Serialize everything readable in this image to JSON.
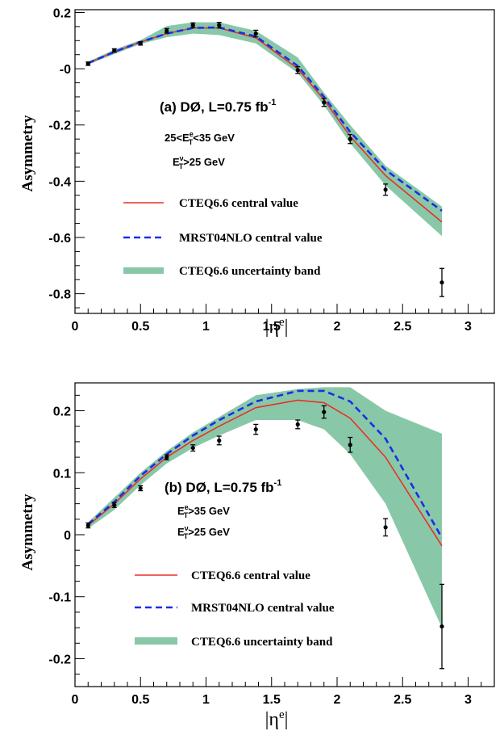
{
  "colors": {
    "cteq_line": "#e8302a",
    "mrst_line": "#1a2fe6",
    "band": "#88c8a8",
    "data_points": "#000000"
  },
  "chart_data": [
    {
      "type": "line",
      "panel": "a",
      "xlabel": "|η^e|",
      "ylabel": "Asymmetry",
      "xlim": [
        0,
        3.2
      ],
      "ylim": [
        -0.87,
        0.21
      ],
      "x_ticks": [
        "0",
        "0.5",
        "1",
        "1.5",
        "2",
        "2.5",
        "3"
      ],
      "x_tick_values": [
        0,
        0.5,
        1,
        1.5,
        2,
        2.5,
        3
      ],
      "y_ticks": [
        "0.2",
        "-0",
        "-0.2",
        "-0.4",
        "-0.6",
        "-0.8"
      ],
      "y_tick_values": [
        0.2,
        0,
        -0.2,
        -0.4,
        -0.6,
        -0.8
      ],
      "annotations": {
        "title_main": "(a) DØ, L=0.75 fb",
        "title_sup": "-1",
        "cut1_pre": "25<E",
        "cut1_sup": "e",
        "cut1_sub": "T",
        "cut1_post": "<35 GeV",
        "cut2_pre": "E",
        "cut2_sup": "ν",
        "cut2_sub": "T",
        "cut2_post": ">25 GeV"
      },
      "legend": [
        {
          "label": "CTEQ6.6 central value",
          "style": "solid"
        },
        {
          "label": "MRST04NLO central value",
          "style": "dashed"
        },
        {
          "label": "CTEQ6.6 uncertainty band",
          "style": "band"
        }
      ],
      "x": [
        0.1,
        0.3,
        0.5,
        0.7,
        0.9,
        1.1,
        1.38,
        1.7,
        1.9,
        2.1,
        2.37,
        2.8
      ],
      "series": [
        {
          "name": "CTEQ6.6 central value",
          "values": [
            0.02,
            0.06,
            0.095,
            0.125,
            0.145,
            0.145,
            0.11,
            0.0,
            -0.11,
            -0.24,
            -0.38,
            -0.545
          ]
        },
        {
          "name": "MRST04NLO central value",
          "values": [
            0.02,
            0.06,
            0.095,
            0.125,
            0.145,
            0.147,
            0.115,
            0.01,
            -0.1,
            -0.225,
            -0.36,
            -0.505
          ]
        }
      ],
      "band": {
        "name": "CTEQ6.6 uncertainty band",
        "upper": [
          0.025,
          0.068,
          0.102,
          0.152,
          0.165,
          0.165,
          0.135,
          0.04,
          -0.085,
          -0.2,
          -0.345,
          -0.49
        ],
        "lower": [
          0.015,
          0.052,
          0.088,
          0.112,
          0.125,
          0.12,
          0.09,
          -0.015,
          -0.13,
          -0.265,
          -0.415,
          -0.595
        ]
      },
      "data": {
        "x": [
          0.1,
          0.3,
          0.5,
          0.7,
          0.9,
          1.1,
          1.38,
          1.7,
          1.9,
          2.1,
          2.37,
          2.8
        ],
        "y": [
          0.018,
          0.065,
          0.09,
          0.135,
          0.155,
          0.155,
          0.125,
          -0.005,
          -0.12,
          -0.25,
          -0.43,
          -0.76
        ],
        "err": [
          0.006,
          0.006,
          0.006,
          0.008,
          0.008,
          0.01,
          0.012,
          0.012,
          0.014,
          0.016,
          0.02,
          0.05
        ]
      }
    },
    {
      "type": "line",
      "panel": "b",
      "xlabel": "|η^e|",
      "ylabel": "Asymmetry",
      "xlim": [
        0,
        3.2
      ],
      "ylim": [
        -0.245,
        0.245
      ],
      "x_ticks": [
        "0",
        "0.5",
        "1",
        "1.5",
        "2",
        "2.5",
        "3"
      ],
      "x_tick_values": [
        0,
        0.5,
        1,
        1.5,
        2,
        2.5,
        3
      ],
      "y_ticks": [
        "0.2",
        "0.1",
        "0",
        "-0.1",
        "-0.2"
      ],
      "y_tick_values": [
        0.2,
        0.1,
        0,
        -0.1,
        -0.2
      ],
      "annotations": {
        "title_main": "(b) DØ, L=0.75 fb",
        "title_sup": "-1",
        "cut1_pre": "E",
        "cut1_sup": "e",
        "cut1_sub": "T",
        "cut1_post": ">35 GeV",
        "cut2_pre": "E",
        "cut2_sup": "ν",
        "cut2_sub": "T",
        "cut2_post": ">25 GeV"
      },
      "legend": [
        {
          "label": "CTEQ6.6 central value",
          "style": "solid"
        },
        {
          "label": "MRST04NLO central value",
          "style": "dashed"
        },
        {
          "label": "CTEQ6.6 uncertainty band",
          "style": "band"
        }
      ],
      "x": [
        0.1,
        0.3,
        0.5,
        0.7,
        0.9,
        1.1,
        1.38,
        1.7,
        1.9,
        2.1,
        2.37,
        2.8
      ],
      "series": [
        {
          "name": "CTEQ6.6 central value",
          "values": [
            0.015,
            0.05,
            0.09,
            0.125,
            0.152,
            0.175,
            0.205,
            0.217,
            0.213,
            0.188,
            0.125,
            -0.018
          ]
        },
        {
          "name": "MRST04NLO central value",
          "values": [
            0.017,
            0.053,
            0.095,
            0.13,
            0.16,
            0.185,
            0.215,
            0.232,
            0.232,
            0.215,
            0.155,
            -0.005
          ]
        }
      ],
      "band": {
        "name": "CTEQ6.6 uncertainty band",
        "upper": [
          0.02,
          0.06,
          0.1,
          0.135,
          0.165,
          0.19,
          0.225,
          0.235,
          0.238,
          0.238,
          0.2,
          0.163
        ],
        "lower": [
          0.01,
          0.04,
          0.08,
          0.115,
          0.14,
          0.16,
          0.185,
          0.185,
          0.17,
          0.13,
          0.05,
          -0.15
        ]
      },
      "data": {
        "x": [
          0.1,
          0.3,
          0.5,
          0.7,
          0.9,
          1.1,
          1.38,
          1.7,
          1.9,
          2.1,
          2.37,
          2.8
        ],
        "y": [
          0.015,
          0.048,
          0.075,
          0.125,
          0.14,
          0.152,
          0.17,
          0.178,
          0.198,
          0.145,
          0.012,
          -0.148
        ],
        "err": [
          0.004,
          0.004,
          0.004,
          0.004,
          0.005,
          0.007,
          0.008,
          0.007,
          0.01,
          0.012,
          0.014,
          0.068
        ]
      }
    }
  ]
}
